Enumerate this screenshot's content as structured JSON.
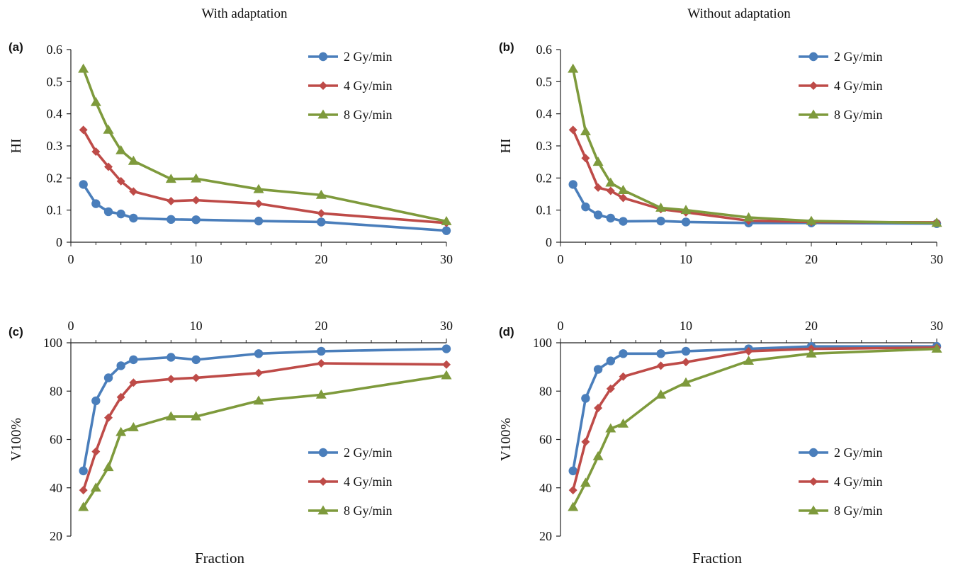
{
  "column_titles": [
    "With adaptation",
    "Without adaptation"
  ],
  "shared_xlabel": "Fraction",
  "series_colors": {
    "2 Gy/min": "#4a7ebb",
    "4 Gy/min": "#be4b48",
    "8 Gy/min": "#7e9a3c"
  },
  "chart_data": [
    {
      "panel": "(a)",
      "type": "line",
      "ylabel": "HI",
      "xlim": [
        0,
        30
      ],
      "ylim": [
        0,
        0.6
      ],
      "xticks": [
        0,
        10,
        20,
        30
      ],
      "yticks": [
        0,
        0.1,
        0.2,
        0.3,
        0.4,
        0.5,
        0.6
      ],
      "x_axis_position": "bottom",
      "legend": "top-right",
      "grid": false,
      "series": [
        {
          "name": "2 Gy/min",
          "marker": "circle",
          "x": [
            1,
            2,
            3,
            4,
            5,
            8,
            10,
            15,
            20,
            30
          ],
          "values": [
            0.18,
            0.12,
            0.095,
            0.088,
            0.075,
            0.071,
            0.07,
            0.066,
            0.063,
            0.036
          ]
        },
        {
          "name": "4 Gy/min",
          "marker": "diamond",
          "x": [
            1,
            2,
            3,
            4,
            5,
            8,
            10,
            15,
            20,
            30
          ],
          "values": [
            0.35,
            0.282,
            0.235,
            0.19,
            0.158,
            0.128,
            0.131,
            0.12,
            0.09,
            0.06
          ]
        },
        {
          "name": "8 Gy/min",
          "marker": "triangle",
          "x": [
            1,
            2,
            3,
            4,
            5,
            8,
            10,
            15,
            20,
            30
          ],
          "values": [
            0.54,
            0.436,
            0.35,
            0.286,
            0.253,
            0.197,
            0.198,
            0.165,
            0.147,
            0.065
          ]
        }
      ]
    },
    {
      "panel": "(b)",
      "type": "line",
      "ylabel": "HI",
      "xlim": [
        0,
        30
      ],
      "ylim": [
        0,
        0.6
      ],
      "xticks": [
        0,
        10,
        20,
        30
      ],
      "yticks": [
        0,
        0.1,
        0.2,
        0.3,
        0.4,
        0.5,
        0.6
      ],
      "x_axis_position": "bottom",
      "legend": "top-right",
      "grid": false,
      "series": [
        {
          "name": "2 Gy/min",
          "marker": "circle",
          "x": [
            1,
            2,
            3,
            4,
            5,
            8,
            10,
            15,
            20,
            30
          ],
          "values": [
            0.18,
            0.11,
            0.085,
            0.075,
            0.065,
            0.066,
            0.063,
            0.06,
            0.06,
            0.058
          ]
        },
        {
          "name": "4 Gy/min",
          "marker": "diamond",
          "x": [
            1,
            2,
            3,
            4,
            5,
            8,
            10,
            15,
            20,
            30
          ],
          "values": [
            0.35,
            0.262,
            0.17,
            0.16,
            0.138,
            0.103,
            0.093,
            0.067,
            0.063,
            0.062
          ]
        },
        {
          "name": "8 Gy/min",
          "marker": "triangle",
          "x": [
            1,
            2,
            3,
            4,
            5,
            8,
            10,
            15,
            20,
            30
          ],
          "values": [
            0.54,
            0.345,
            0.25,
            0.185,
            0.162,
            0.107,
            0.1,
            0.077,
            0.066,
            0.06
          ]
        }
      ]
    },
    {
      "panel": "(c)",
      "type": "line",
      "ylabel": "V100%",
      "xlim": [
        0,
        30
      ],
      "ylim": [
        20,
        100
      ],
      "xticks": [
        0,
        10,
        20,
        30
      ],
      "yticks": [
        20,
        40,
        60,
        80,
        100
      ],
      "x_axis_position": "top",
      "legend": "bottom-right",
      "grid": false,
      "series": [
        {
          "name": "2 Gy/min",
          "marker": "circle",
          "x": [
            1,
            2,
            3,
            4,
            5,
            8,
            10,
            15,
            20,
            30
          ],
          "values": [
            47,
            76,
            85.5,
            90.5,
            93,
            94,
            93,
            95.5,
            96.5,
            97.5
          ]
        },
        {
          "name": "4 Gy/min",
          "marker": "diamond",
          "x": [
            1,
            2,
            3,
            4,
            5,
            8,
            10,
            15,
            20,
            30
          ],
          "values": [
            39,
            55,
            69,
            77.5,
            83.5,
            85,
            85.5,
            87.5,
            91.5,
            91
          ]
        },
        {
          "name": "8 Gy/min",
          "marker": "triangle",
          "x": [
            1,
            2,
            3,
            4,
            5,
            8,
            10,
            15,
            20,
            30
          ],
          "values": [
            32,
            40,
            48.5,
            63,
            65,
            69.5,
            69.5,
            76,
            78.5,
            86.5
          ]
        }
      ]
    },
    {
      "panel": "(d)",
      "type": "line",
      "ylabel": "V100%",
      "xlim": [
        0,
        30
      ],
      "ylim": [
        20,
        100
      ],
      "xticks": [
        0,
        10,
        20,
        30
      ],
      "yticks": [
        20,
        40,
        60,
        80,
        100
      ],
      "x_axis_position": "top",
      "legend": "bottom-right",
      "grid": false,
      "series": [
        {
          "name": "2 Gy/min",
          "marker": "circle",
          "x": [
            1,
            2,
            3,
            4,
            5,
            8,
            10,
            15,
            20,
            30
          ],
          "values": [
            47,
            77,
            89,
            92.5,
            95.5,
            95.5,
            96.5,
            97.5,
            98.5,
            98.5
          ]
        },
        {
          "name": "4 Gy/min",
          "marker": "diamond",
          "x": [
            1,
            2,
            3,
            4,
            5,
            8,
            10,
            15,
            20,
            30
          ],
          "values": [
            39,
            59,
            73,
            81,
            86,
            90.5,
            92,
            96.5,
            97.5,
            98
          ]
        },
        {
          "name": "8 Gy/min",
          "marker": "triangle",
          "x": [
            1,
            2,
            3,
            4,
            5,
            8,
            10,
            15,
            20,
            30
          ],
          "values": [
            32,
            42,
            53,
            64.5,
            66.5,
            78.5,
            83.5,
            92.5,
            95.5,
            97.5
          ]
        }
      ]
    }
  ]
}
